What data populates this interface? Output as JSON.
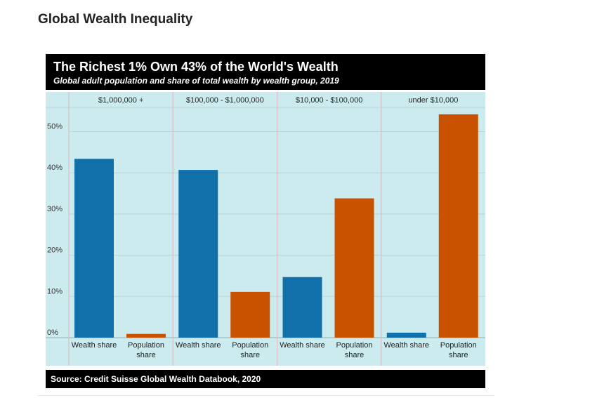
{
  "page": {
    "heading": "Global Wealth Inequality"
  },
  "chart_data": {
    "type": "bar",
    "title": "The Richest 1% Own 43% of the World's Wealth",
    "subtitle": "Global adult population and share of total wealth by wealth group, 2019",
    "source": "Source: Credit Suisse Global Wealth Databook, 2020",
    "groups": [
      "$1,000,000 +",
      "$100,000 - $1,000,000",
      "$10,000 - $100,000",
      "under $10,000"
    ],
    "bar_labels": [
      "Wealth share",
      "Population\nshare"
    ],
    "series": [
      {
        "key": "wealth",
        "values": [
          43.4,
          40.7,
          14.7,
          1.2
        ],
        "color": "#1170aa"
      },
      {
        "key": "population",
        "values": [
          0.9,
          11.1,
          33.8,
          54.2
        ],
        "color": "#c85200"
      }
    ],
    "y_ticks": [
      "0%",
      "10%",
      "20%",
      "30%",
      "40%",
      "50%"
    ],
    "ylim": [
      0,
      55
    ],
    "grid": true,
    "background": "#ccebee"
  }
}
